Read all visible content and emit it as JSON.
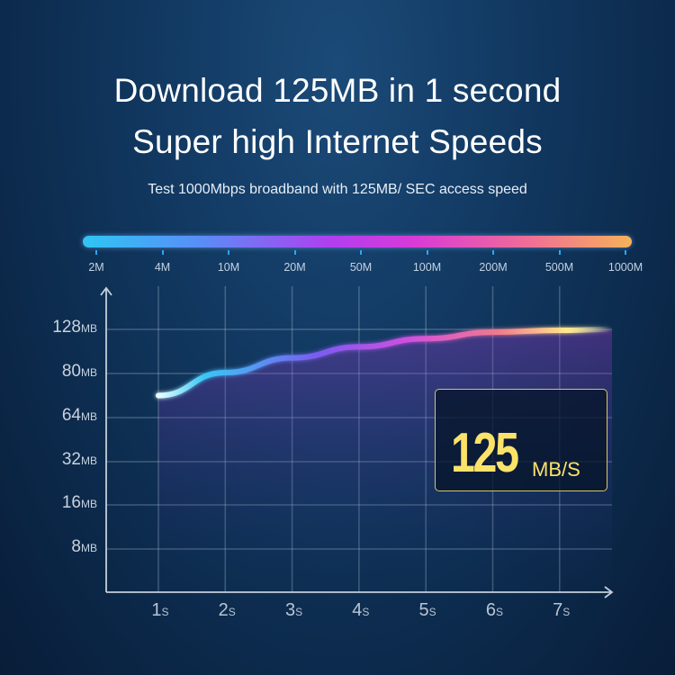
{
  "header": {
    "title_line1": "Download 125MB in 1 second",
    "title_line2": "Super high Internet Speeds",
    "subtitle": "Test 1000Mbps broadband with 125MB/ SEC access speed"
  },
  "scale": {
    "labels": [
      "2M",
      "4M",
      "10M",
      "20M",
      "50M",
      "100M",
      "200M",
      "500M",
      "1000M"
    ],
    "colors": [
      "#2fc6f4",
      "#b03ff0",
      "#d83ad8",
      "#f6b25a"
    ]
  },
  "callout": {
    "value": "125",
    "unit": "MB/S",
    "color": "#fbe36a"
  },
  "chart_data": {
    "type": "line",
    "title": "",
    "x": [
      "1",
      "2",
      "3",
      "4",
      "5",
      "6",
      "7"
    ],
    "x_unit": "s",
    "y_ticks": [
      "8",
      "16",
      "32",
      "64",
      "80",
      "128"
    ],
    "y_unit": "MB",
    "y_scale": "categorical (8,16,32,64,80,128)",
    "series": [
      {
        "values": [
          72,
          81,
          97,
          109,
          118,
          125,
          127
        ]
      }
    ],
    "grid": true
  }
}
